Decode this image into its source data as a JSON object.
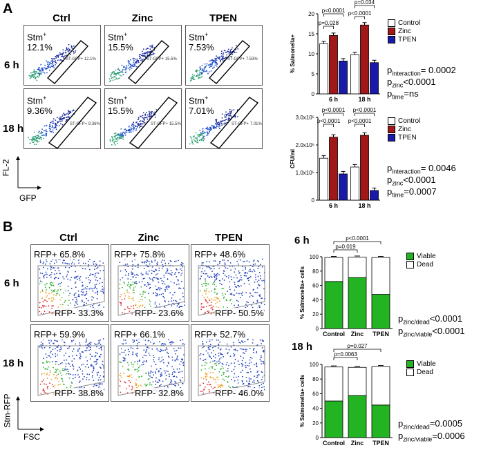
{
  "panelA": {
    "letter": "A",
    "columns": [
      "Ctrl",
      "Zinc",
      "TPEN"
    ],
    "rows": [
      "6 h",
      "18 h"
    ],
    "axis_y": "FL-2",
    "axis_x": "GFP",
    "stm_label": "Stm",
    "sup_plus": "+",
    "values": [
      [
        "12.1%",
        "15.5%",
        "7.53%"
      ],
      [
        "9.36%",
        "15.5%",
        "7.01%"
      ]
    ],
    "gate_labels": [
      [
        "ST-GFP+ 12.1%",
        "ST-GFP+ 15.5%",
        "ST-GFP+ 7.53%"
      ],
      [
        "ST-GFP+ 9.36%",
        "ST-GFP+ 15.5%",
        "ST-GFP+ 7.01%"
      ]
    ],
    "stats1": {
      "p_interaction": "= 0.0002",
      "p_zinc": "<0.0001",
      "p_time": "=ns"
    },
    "stats2": {
      "p_interaction": "= 0.0046",
      "p_zinc": "<0.0001",
      "p_time": "=0.0007"
    }
  },
  "panelB": {
    "letter": "B",
    "columns": [
      "Ctrl",
      "Zinc",
      "TPEN"
    ],
    "rows": [
      "6 h",
      "18 h"
    ],
    "axis_y": "Stm-RFP",
    "axis_x": "FSC",
    "rfp_pos": [
      [
        "RFP+ 65.8%",
        "RFP+ 75.8%",
        "RFP+ 48.6%"
      ],
      [
        "RFP+ 59.9%",
        "RFP+ 66.1%",
        "RFP+ 52.7%"
      ]
    ],
    "rfp_neg": [
      [
        "RFP- 33.3%",
        "RFP- 23.6%",
        "RFP- 50.5%"
      ],
      [
        "RFP- 38.8%",
        "RFP- 32.8%",
        "RFP- 46.0%"
      ]
    ],
    "stats1": {
      "p_zinc_dead": "<0.0001",
      "p_zinc_viable": "<0.0001"
    },
    "stats2": {
      "p_zinc_dead": "=0.0005",
      "p_zinc_viable": "=0.0006"
    }
  },
  "labels": {
    "p": "p",
    "interaction": "interaction",
    "zinc": "zinc",
    "time": "time",
    "zinc_dead": "zinc/dead",
    "zinc_viable": "zinc/viable"
  },
  "colors": {
    "control": "#ffffff",
    "zinc": "#a01818",
    "tpen": "#1a1aa8",
    "viable": "#22b422",
    "dead": "#ffffff"
  },
  "chart_data": [
    {
      "type": "bar",
      "title": "",
      "ylabel": "% Salmonella+",
      "ylim": [
        0,
        20
      ],
      "yticks": [
        0,
        5,
        10,
        15,
        20
      ],
      "categories": [
        "6 h",
        "18 h"
      ],
      "series": [
        {
          "name": "Control",
          "values": [
            12.5,
            9.8
          ]
        },
        {
          "name": "Zinc",
          "values": [
            14.6,
            17.2
          ]
        },
        {
          "name": "TPEN",
          "values": [
            8.2,
            7.8
          ]
        }
      ],
      "annotations": [
        "p<0.0001",
        "p=0.028",
        "p=0.034",
        "p<0.0001"
      ],
      "legend": "top-right"
    },
    {
      "type": "bar",
      "title": "",
      "ylabel": "CFU/ml",
      "ylim": [
        0,
        300000.0
      ],
      "yticks": [
        0,
        100000.0,
        200000.0,
        300000.0
      ],
      "ytick_labels": [
        "0",
        "1.0x10⁵",
        "2.0x10⁵",
        "3.0x10⁵"
      ],
      "categories": [
        "6 h",
        "18 h"
      ],
      "series": [
        {
          "name": "Control",
          "values": [
            152000.0,
            120000.0
          ]
        },
        {
          "name": "Zinc",
          "values": [
            228000.0,
            235000.0
          ]
        },
        {
          "name": "TPEN",
          "values": [
            95000.0,
            35000.0
          ]
        }
      ],
      "annotations": [
        "p<0.0001",
        "p<0.0001",
        "p<0.0001",
        "p<0.0001"
      ],
      "legend": "top-right"
    },
    {
      "type": "bar",
      "stacked": true,
      "title": "6 h",
      "ylabel": "% Salmonella+ cells",
      "ylim": [
        0,
        100
      ],
      "yticks": [
        0,
        20,
        40,
        60,
        80,
        100
      ],
      "categories": [
        "Control",
        "Zinc",
        "TPEN"
      ],
      "series": [
        {
          "name": "Viable",
          "values": [
            65.5,
            71.0,
            47.5
          ]
        },
        {
          "name": "Dead",
          "values": [
            33.5,
            28.5,
            51.5
          ]
        }
      ],
      "annotations": [
        "p=0.019",
        "p<0.0001"
      ],
      "legend": "top-right"
    },
    {
      "type": "bar",
      "stacked": true,
      "title": "18 h",
      "ylabel": "% Salmonella+ cells",
      "ylim": [
        0,
        100
      ],
      "yticks": [
        0,
        20,
        40,
        60,
        80,
        100
      ],
      "categories": [
        "Control",
        "Zinc",
        "TPEN"
      ],
      "series": [
        {
          "name": "Viable",
          "values": [
            50.0,
            57.5,
            44.5
          ]
        },
        {
          "name": "Dead",
          "values": [
            46.5,
            38.5,
            52.5
          ]
        }
      ],
      "annotations": [
        "p=0.0063",
        "p=0.027"
      ],
      "legend": "top-right"
    }
  ]
}
